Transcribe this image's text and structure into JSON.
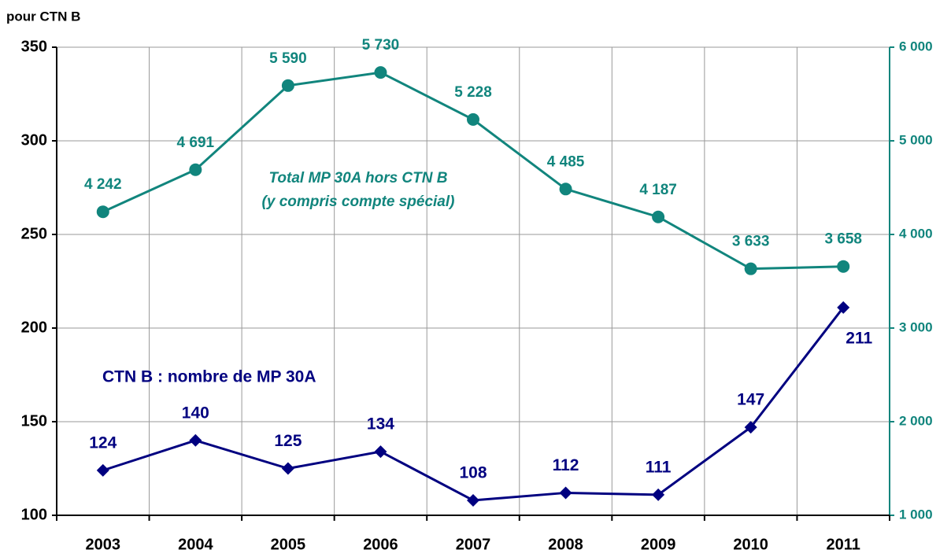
{
  "chart_data": {
    "type": "line",
    "y_label": "pour CTN B",
    "categories": [
      "2003",
      "2004",
      "2005",
      "2006",
      "2007",
      "2008",
      "2009",
      "2010",
      "2011"
    ],
    "series": [
      {
        "name": "CTN B : nombre de MP 30A",
        "color": "#000080",
        "marker": "diamond",
        "axis": "y",
        "values": [
          124,
          140,
          125,
          134,
          108,
          112,
          111,
          147,
          211
        ]
      },
      {
        "name": [
          "Total MP 30A hors CTN B",
          "(y compris compte spécial)"
        ],
        "color": "#11857d",
        "marker": "circle",
        "axis": "y2",
        "values": [
          4242,
          4691,
          5590,
          5730,
          5228,
          4485,
          4187,
          3633,
          3658
        ],
        "value_labels": [
          "4 242",
          "4 691",
          "5 590",
          "5 730",
          "5 228",
          "4 485",
          "4 187",
          "3 633",
          "3 658"
        ]
      }
    ],
    "ylim": [
      100,
      350
    ],
    "yticks": [
      100,
      150,
      200,
      250,
      300,
      350
    ],
    "y2lim": [
      1000,
      6000
    ],
    "y2ticks": [
      {
        "value": 1000,
        "label": "1 000"
      },
      {
        "value": 2000,
        "label": "2 000"
      },
      {
        "value": 3000,
        "label": "3 000"
      },
      {
        "value": 4000,
        "label": "4 000"
      },
      {
        "value": 5000,
        "label": "5 000"
      },
      {
        "value": 6000,
        "label": "6 000"
      }
    ],
    "grid": true
  }
}
